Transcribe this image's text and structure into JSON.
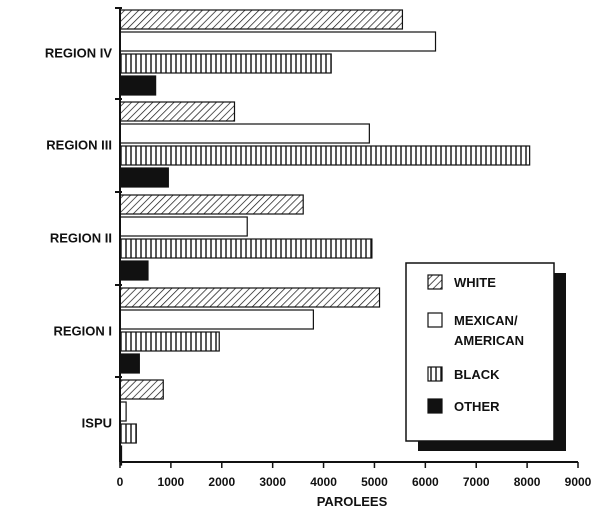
{
  "chart_data": {
    "type": "bar",
    "orientation": "horizontal",
    "categories": [
      "REGION IV",
      "REGION III",
      "REGION II",
      "REGION I",
      "ISPU"
    ],
    "series": [
      {
        "name": "WHITE",
        "pattern": "diagonal",
        "values": [
          5550,
          2250,
          3600,
          5100,
          850
        ]
      },
      {
        "name": "MEXICAN/ AMERICAN",
        "pattern": "empty",
        "values": [
          6200,
          4900,
          2500,
          3800,
          120
        ]
      },
      {
        "name": "BLACK",
        "pattern": "vertical",
        "values": [
          4150,
          8050,
          4950,
          1950,
          320
        ]
      },
      {
        "name": "OTHER",
        "pattern": "solid",
        "values": [
          700,
          950,
          550,
          380,
          30
        ]
      }
    ],
    "xlabel": "PAROLEES",
    "ylabel": "",
    "xlim": [
      0,
      9000
    ],
    "xticks": [
      0,
      1000,
      2000,
      3000,
      4000,
      5000,
      6000,
      7000,
      8000,
      9000
    ],
    "xtick_labels": [
      "0",
      "1000",
      "2000",
      "3000",
      "4000",
      "5000",
      "6000",
      "7000",
      "8000",
      "9000"
    ],
    "grid": false,
    "legend": {
      "position": "lower-right",
      "entries": [
        "WHITE",
        "MEXICAN/ AMERICAN",
        "BLACK",
        "OTHER"
      ]
    },
    "colors": {
      "ink": "#111111",
      "background": "#ffffff"
    }
  }
}
